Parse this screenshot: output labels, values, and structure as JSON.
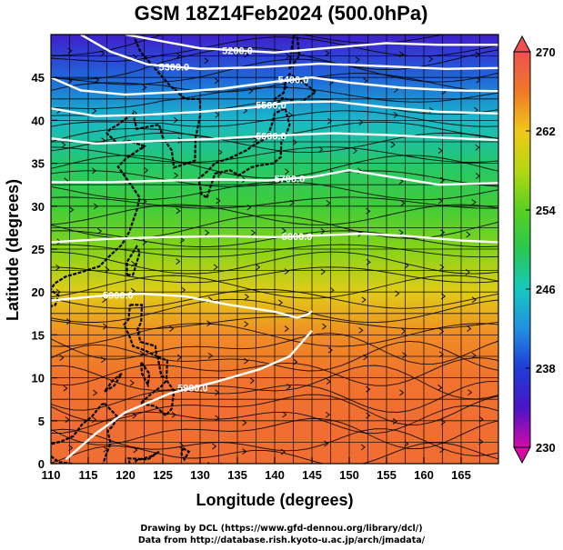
{
  "chart_data": {
    "type": "heatmap",
    "title": "GSM 18Z14Feb2024 (500.0hPa)",
    "xlabel": "Longitude (degrees)",
    "ylabel": "Latitude  (degrees)",
    "xlim": [
      110,
      170
    ],
    "ylim": [
      0,
      50
    ],
    "xticks": [
      110,
      115,
      120,
      125,
      130,
      135,
      140,
      145,
      150,
      155,
      160,
      165
    ],
    "yticks": [
      0,
      5,
      10,
      15,
      20,
      25,
      30,
      35,
      40,
      45
    ],
    "grid": true,
    "colorbar": {
      "min": 230,
      "max": 270,
      "ticks": [
        230,
        238,
        246,
        254,
        262,
        270
      ]
    },
    "temperature_by_latitude": {
      "lat": [
        0,
        5,
        10,
        15,
        20,
        25,
        30,
        35,
        40,
        45,
        50
      ],
      "value": [
        267,
        267,
        266.5,
        265,
        261,
        256,
        252,
        249,
        245,
        240,
        235
      ]
    },
    "contours": [
      {
        "label": "5200.0",
        "lon": [
          120,
          130,
          140,
          148,
          155,
          162,
          170
        ],
        "lat": [
          50,
          48.4,
          47.9,
          48.5,
          49,
          48.8,
          48.8
        ]
      },
      {
        "label": "5300.0",
        "lon": [
          114,
          118,
          123,
          130,
          138,
          146,
          155,
          163,
          170
        ],
        "lat": [
          50,
          48,
          46.5,
          46,
          46.2,
          46.6,
          46.3,
          46,
          46.1
        ]
      },
      {
        "label": "5400.0",
        "lon": [
          110,
          114,
          120,
          127,
          133,
          140,
          145,
          150,
          157,
          164,
          170
        ],
        "lat": [
          45,
          43.5,
          43,
          43.3,
          43.7,
          44.5,
          45,
          44.4,
          43.8,
          43.5,
          43.4
        ]
      },
      {
        "label": "5500.0",
        "lon": [
          110,
          116,
          122,
          130,
          137,
          142,
          148,
          155,
          162,
          170
        ],
        "lat": [
          41.4,
          40.5,
          40.6,
          41,
          41.5,
          42.1,
          42.2,
          41.5,
          41,
          40.8
        ]
      },
      {
        "label": "5600.0",
        "lon": [
          110,
          116,
          124,
          131,
          137,
          142,
          148,
          155,
          162,
          170
        ],
        "lat": [
          37.9,
          37.3,
          37.6,
          37.8,
          38.1,
          38.3,
          38.5,
          38.3,
          38,
          37.7
        ]
      },
      {
        "label": "5700.0",
        "lon": [
          110,
          118,
          126,
          133,
          139,
          145,
          150,
          155,
          162,
          170
        ],
        "lat": [
          32.8,
          32.8,
          33,
          33.1,
          33,
          33.4,
          34.2,
          33.5,
          32.5,
          32.7
        ]
      },
      {
        "label": "5800.0",
        "lon": [
          110,
          118,
          125,
          133,
          140,
          146,
          152,
          158,
          165,
          170
        ],
        "lat": [
          25.8,
          26.2,
          26.4,
          26.5,
          26.4,
          26.6,
          26.8,
          26.5,
          26,
          25.8
        ]
      },
      {
        "label": "5900.0",
        "lon": [
          110,
          116,
          122,
          128,
          134,
          140,
          143,
          144.5,
          145
        ],
        "lat": [
          19,
          19.5,
          19.8,
          19.5,
          18.5,
          17.7,
          17,
          17.4,
          17.8
        ]
      },
      {
        "label": "5900.0",
        "lon": [
          112,
          116,
          120,
          126,
          132,
          138,
          142,
          145
        ],
        "lat": [
          0.5,
          3.5,
          6,
          8.2,
          9.5,
          11,
          12.5,
          15.5
        ]
      }
    ]
  },
  "credits": {
    "line1": "Drawing by DCL (https://www.gfd-dennou.org/library/dcl/)",
    "line2": "Data from http://database.rish.kyoto-u.ac.jp/arch/jmadata/"
  },
  "colors": {
    "colorbar_stops": [
      "#d40aa8",
      "#4b14c8",
      "#1e3cd6",
      "#2290e0",
      "#16c8c0",
      "#28c850",
      "#58d020",
      "#b4d812",
      "#f0c818",
      "#f07828",
      "#f05050"
    ],
    "contour": "#ffffff",
    "streamline": "#000000",
    "coastline": "#000000"
  }
}
